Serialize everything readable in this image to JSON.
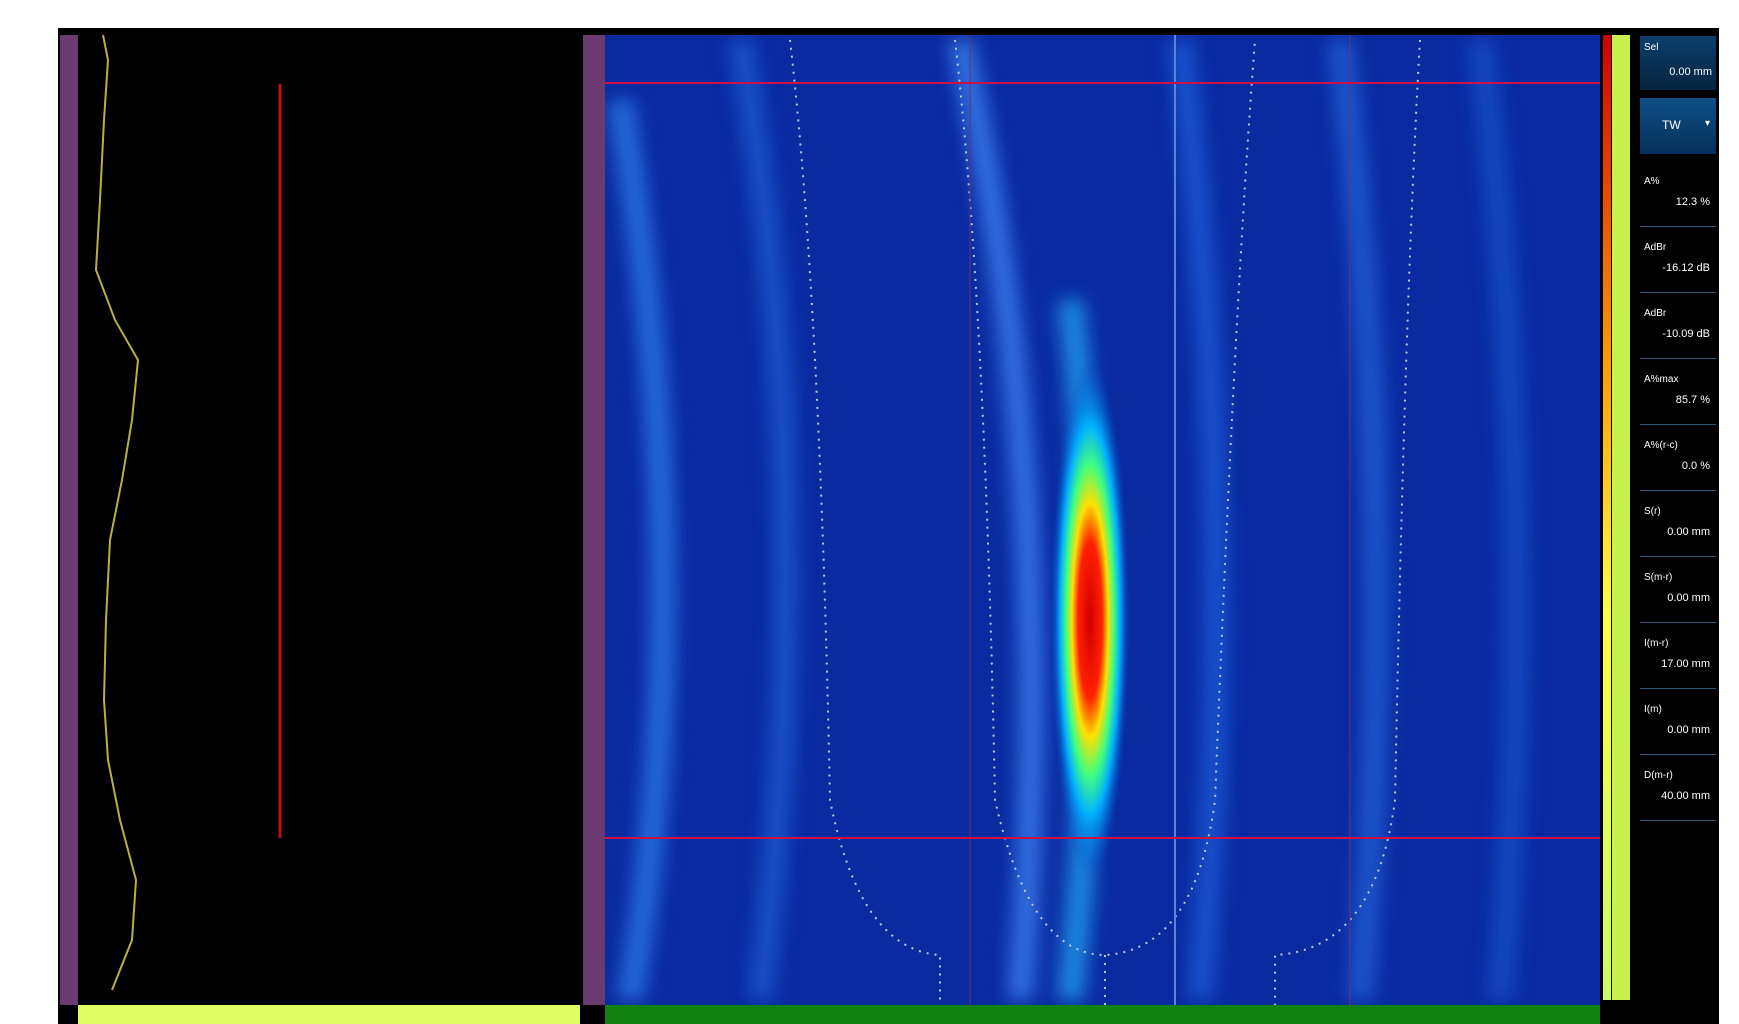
{
  "panel": {
    "selection": {
      "label": "Sel",
      "value": "0.00 mm"
    },
    "mode": "TW",
    "readouts": [
      {
        "label": "A%",
        "value": "12.3 %"
      },
      {
        "label": "AdBr",
        "value": "-16.12 dB"
      },
      {
        "label": "AdBr",
        "value": "-10.09 dB"
      },
      {
        "label": "A%max",
        "value": "85.7 %"
      },
      {
        "label": "A%(r-c)",
        "value": "0.0 %"
      },
      {
        "label": "S(r)",
        "value": "0.00 mm"
      },
      {
        "label": "S(m-r)",
        "value": "0.00 mm"
      },
      {
        "label": "I(m-r)",
        "value": "17.00 mm"
      },
      {
        "label": "I(m)",
        "value": "0.00 mm"
      },
      {
        "label": "D(m-r)",
        "value": "40.00 mm"
      }
    ]
  }
}
